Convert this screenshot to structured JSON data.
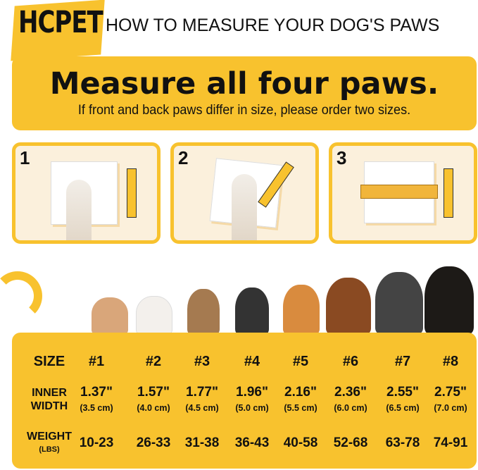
{
  "brand": {
    "logo": "HCPET"
  },
  "header": {
    "title": "HOW TO MEASURE YOUR DOG'S PAWS"
  },
  "banner": {
    "headline": "Measure all four paws.",
    "subline": "If front and back paws differ in size, please order two sizes."
  },
  "steps": [
    {
      "number": "1"
    },
    {
      "number": "2"
    },
    {
      "number": "3"
    }
  ],
  "colors": {
    "accent": "#f8c22e",
    "panel": "#fbf0dc"
  },
  "size_table": {
    "row_labels": {
      "size": "SIZE",
      "inner_width": [
        "INNER",
        "WIDTH"
      ],
      "weight": [
        "WEIGHT",
        "(LBS)"
      ]
    },
    "sizes": [
      {
        "size": "#1",
        "inches": "1.37\"",
        "cm": "(3.5 cm)",
        "weight": "10-23"
      },
      {
        "size": "#2",
        "inches": "1.57\"",
        "cm": "(4.0 cm)",
        "weight": "26-33"
      },
      {
        "size": "#3",
        "inches": "1.77\"",
        "cm": "(4.5 cm)",
        "weight": "31-38"
      },
      {
        "size": "#4",
        "inches": "1.96\"",
        "cm": "(5.0 cm)",
        "weight": "36-43"
      },
      {
        "size": "#5",
        "inches": "2.16\"",
        "cm": "(5.5 cm)",
        "weight": "40-58"
      },
      {
        "size": "#6",
        "inches": "2.36\"",
        "cm": "(6.0 cm)",
        "weight": "52-68"
      },
      {
        "size": "#7",
        "inches": "2.55\"",
        "cm": "(6.5 cm)",
        "weight": "63-78"
      },
      {
        "size": "#8",
        "inches": "2.75\"",
        "cm": "(7.0 cm)",
        "weight": "74-91"
      }
    ]
  }
}
